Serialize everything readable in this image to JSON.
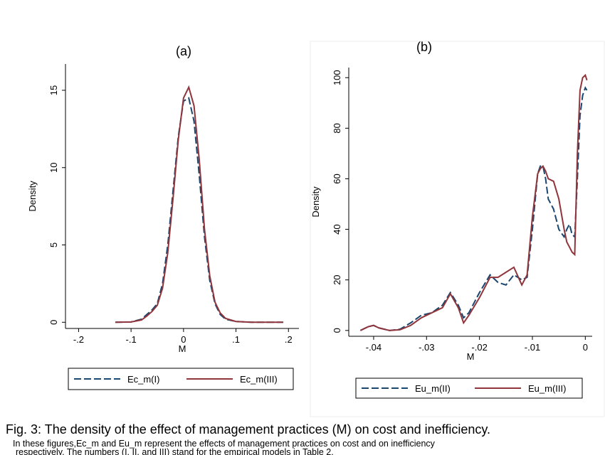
{
  "chart_data": [
    {
      "type": "line",
      "title": "(a)",
      "xlabel": "M",
      "ylabel": "Density",
      "x": [
        -0.13,
        -0.1,
        -0.08,
        -0.07,
        -0.06,
        -0.05,
        -0.04,
        -0.03,
        -0.02,
        -0.01,
        0,
        0.01,
        0.02,
        0.03,
        0.04,
        0.05,
        0.06,
        0.07,
        0.08,
        0.1,
        0.13,
        0.16,
        0.19
      ],
      "series": [
        {
          "name": "Ec_m(I)",
          "color": "#1a476f",
          "style": "dashed",
          "values": [
            0,
            0.02,
            0.2,
            0.5,
            0.8,
            1.2,
            2.5,
            5,
            8.5,
            12,
            14.3,
            14.5,
            13,
            9.5,
            5.5,
            2.7,
            1.2,
            0.5,
            0.2,
            0.05,
            0,
            0,
            0
          ]
        },
        {
          "name": "Ec_m(III)",
          "color": "#90353b",
          "style": "solid",
          "values": [
            0,
            0.02,
            0.15,
            0.4,
            0.7,
            1.1,
            2.2,
            4.5,
            8,
            11.8,
            14.5,
            15.2,
            14,
            10.5,
            6,
            3,
            1.3,
            0.6,
            0.25,
            0.05,
            0,
            0,
            0
          ]
        }
      ],
      "xlim": [
        -0.225,
        0.22
      ],
      "ylim": [
        -0.4,
        16.7
      ],
      "xticks": [
        {
          "value": -0.2,
          "label": "-.2"
        },
        {
          "value": -0.1,
          "label": "-.1"
        },
        0,
        {
          "value": 0.1,
          "label": ".1"
        },
        {
          "value": 0.2,
          "label": ".2"
        }
      ],
      "yticks": [
        0,
        5,
        10,
        15
      ],
      "legend": "bottom"
    },
    {
      "type": "line",
      "title": "(b)",
      "xlabel": "M",
      "ylabel": "Density",
      "x": [
        -0.0425,
        -0.041,
        -0.04,
        -0.039,
        -0.037,
        -0.035,
        -0.033,
        -0.031,
        -0.029,
        -0.027,
        -0.0255,
        -0.024,
        -0.023,
        -0.022,
        -0.02,
        -0.018,
        -0.0165,
        -0.015,
        -0.0135,
        -0.012,
        -0.011,
        -0.01,
        -0.009,
        -0.0085,
        -0.008,
        -0.0075,
        -0.007,
        -0.006,
        -0.005,
        -0.004,
        -0.0035,
        -0.003,
        -0.0025,
        -0.002,
        -0.0015,
        -0.001,
        -0.0005,
        0,
        0.0003
      ],
      "series": [
        {
          "name": "Eu_m(II)",
          "color": "#1a476f",
          "style": "dashed",
          "values": [
            0,
            1.5,
            2,
            1,
            0,
            0.5,
            3,
            6,
            7,
            10,
            15,
            10,
            5,
            7,
            15,
            22,
            19,
            18,
            22,
            20,
            21,
            40,
            62,
            65,
            65,
            60,
            52,
            48,
            40,
            37,
            40,
            42,
            38,
            37,
            60,
            85,
            93,
            96,
            95
          ]
        },
        {
          "name": "Eu_m(III)",
          "color": "#90353b",
          "style": "solid",
          "values": [
            0,
            1.5,
            2,
            1,
            0,
            0.3,
            2,
            5,
            7,
            9,
            14.5,
            9,
            3,
            6,
            13,
            21,
            21,
            23,
            25,
            18,
            22,
            45,
            62,
            64,
            65,
            63,
            60,
            59,
            52,
            40,
            35,
            33,
            31,
            30,
            70,
            95,
            100,
            101,
            99
          ]
        }
      ],
      "xlim": [
        -0.0447,
        0.0013
      ],
      "ylim": [
        -2.3,
        104
      ],
      "xticks": [
        {
          "value": -0.04,
          "label": "-.04"
        },
        {
          "value": -0.03,
          "label": "-.03"
        },
        {
          "value": -0.02,
          "label": "-.02"
        },
        {
          "value": -0.01,
          "label": "-.01"
        },
        0
      ],
      "yticks": [
        0,
        20,
        40,
        60,
        80,
        100
      ],
      "legend": "bottom"
    }
  ],
  "caption": "Fig. 3: The density of the effect of management practices (M) on cost and inefficiency.",
  "note": [
    "In these  figures,Ec_m and Eu_m represent  the effects of management practices on cost and on inefficiency",
    "respectively. The numbers (I, II, and III) stand for the empirical models in Table 2."
  ]
}
